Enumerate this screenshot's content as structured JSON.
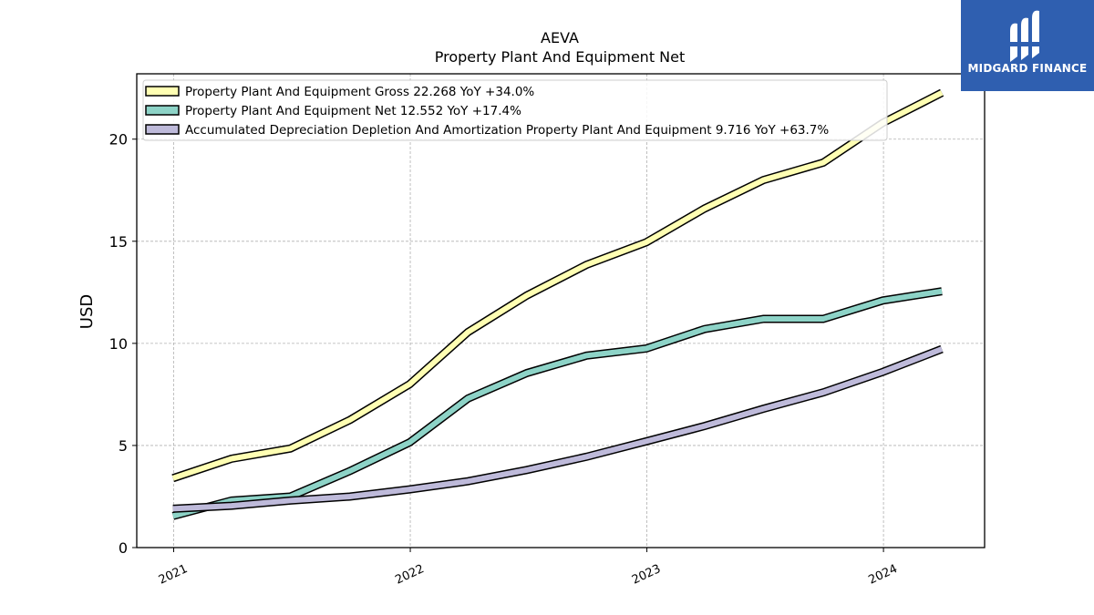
{
  "chart_data": {
    "type": "line",
    "title": "AEVA",
    "subtitle": "Property Plant And Equipment Net",
    "ylabel": "USD",
    "xlabel": "",
    "ylim": [
      0,
      23.2
    ],
    "xlim": [
      "2020-11-05",
      "2024-06-05"
    ],
    "yticks": [
      0,
      5,
      10,
      15,
      20
    ],
    "xticks": [
      "2021",
      "2022",
      "2023",
      "2024"
    ],
    "grid": true,
    "legend_position": "top-left",
    "x": [
      "2020-12-31",
      "2021-03-31",
      "2021-06-30",
      "2021-09-30",
      "2021-12-31",
      "2022-03-31",
      "2022-06-30",
      "2022-09-30",
      "2022-12-31",
      "2023-03-31",
      "2023-06-30",
      "2023-09-30",
      "2023-12-31",
      "2024-03-31"
    ],
    "series": [
      {
        "name": "Property Plant And Equipment Gross",
        "legend": "Property Plant And Equipment Gross  22.268 YoY +34.0%",
        "color": "#ffffb3",
        "values": [
          3.4,
          4.35,
          4.85,
          6.25,
          8.0,
          10.55,
          12.35,
          13.85,
          14.95,
          16.6,
          18.0,
          18.85,
          20.8,
          22.27
        ]
      },
      {
        "name": "Property Plant And Equipment Net",
        "legend": "Property Plant And Equipment Net  12.552 YoY +17.4%",
        "color": "#8dd3c7",
        "values": [
          1.55,
          2.3,
          2.5,
          3.75,
          5.15,
          7.3,
          8.55,
          9.4,
          9.75,
          10.7,
          11.2,
          11.2,
          12.1,
          12.55
        ]
      },
      {
        "name": "Accumulated Depreciation Depletion And Amortization Property Plant And Equipment",
        "legend": "Accumulated Depreciation Depletion And Amortization Property Plant And Equipment  9.716 YoY +63.7%",
        "color": "#bebada",
        "values": [
          1.9,
          2.05,
          2.3,
          2.5,
          2.85,
          3.25,
          3.8,
          4.45,
          5.2,
          5.95,
          6.8,
          7.6,
          8.6,
          9.72
        ]
      }
    ]
  },
  "logo": {
    "text": "MIDGARD FINANCE",
    "background": "#2f5fb0"
  }
}
